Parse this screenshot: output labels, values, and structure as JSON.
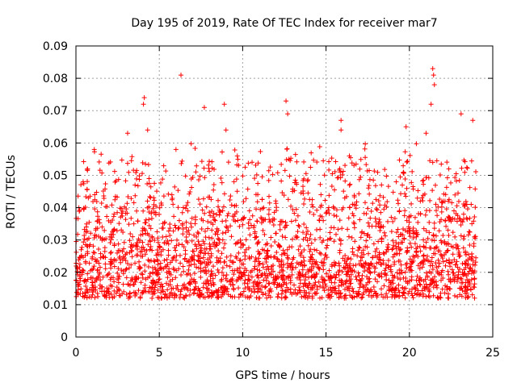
{
  "chart_data": {
    "type": "scatter",
    "title": "Day 195 of 2019, Rate Of TEC Index for receiver mar7",
    "xlabel": "GPS time / hours",
    "ylabel": "ROTI / TECUs",
    "xlim": [
      0,
      25
    ],
    "ylim": [
      0,
      0.09
    ],
    "xticks": [
      0,
      5,
      10,
      15,
      20,
      25
    ],
    "xtick_labels": [
      "0",
      "5",
      "10",
      "15",
      "20",
      "25"
    ],
    "yticks": [
      0,
      0.01,
      0.02,
      0.03,
      0.04,
      0.05,
      0.06,
      0.07,
      0.08,
      0.09
    ],
    "ytick_labels": [
      "0",
      "0.01",
      "0.02",
      "0.03",
      "0.04",
      "0.05",
      "0.06",
      "0.07",
      "0.08",
      "0.09"
    ],
    "grid": true,
    "marker": "+",
    "color": "#ff0000",
    "series": [
      {
        "name": "ROTI",
        "x_range": [
          0,
          24
        ],
        "bulk_range": [
          0.008,
          0.045
        ],
        "notable_points": [
          {
            "x": 4.1,
            "y": 0.074
          },
          {
            "x": 4.05,
            "y": 0.072
          },
          {
            "x": 6.3,
            "y": 0.081
          },
          {
            "x": 7.7,
            "y": 0.071
          },
          {
            "x": 8.9,
            "y": 0.072
          },
          {
            "x": 12.6,
            "y": 0.073
          },
          {
            "x": 12.7,
            "y": 0.069
          },
          {
            "x": 15.9,
            "y": 0.067
          },
          {
            "x": 15.9,
            "y": 0.064
          },
          {
            "x": 16.4,
            "y": 0.056
          },
          {
            "x": 19.8,
            "y": 0.065
          },
          {
            "x": 21.4,
            "y": 0.083
          },
          {
            "x": 21.45,
            "y": 0.081
          },
          {
            "x": 21.5,
            "y": 0.078
          },
          {
            "x": 21.3,
            "y": 0.072
          },
          {
            "x": 21.0,
            "y": 0.063
          },
          {
            "x": 23.1,
            "y": 0.069
          },
          {
            "x": 23.8,
            "y": 0.067
          },
          {
            "x": 3.1,
            "y": 0.063
          },
          {
            "x": 6.0,
            "y": 0.058
          },
          {
            "x": 1.1,
            "y": 0.058
          },
          {
            "x": 9.0,
            "y": 0.064
          },
          {
            "x": 4.3,
            "y": 0.064
          }
        ]
      }
    ]
  }
}
